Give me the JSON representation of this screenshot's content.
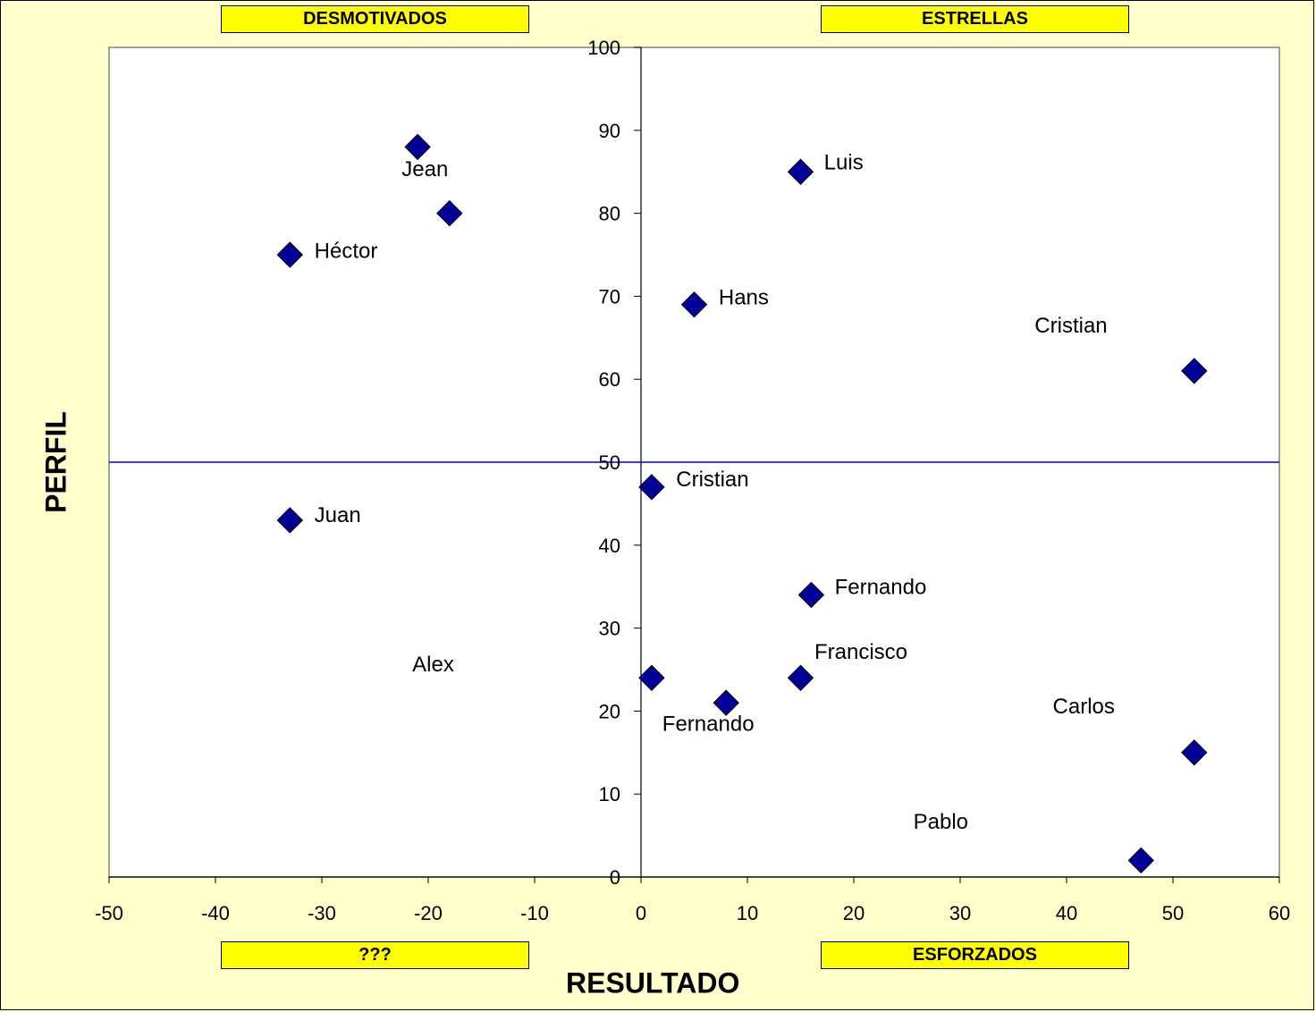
{
  "quadrants": {
    "top_left": "DESMOTIVADOS",
    "top_right": "ESTRELLAS",
    "bottom_left": "???",
    "bottom_right": "ESFORZADOS"
  },
  "colors": {
    "background": "#FFFFCC",
    "quadrant_fill": "#FFFF00",
    "marker": "#000099",
    "threshold_line": "#0000CC"
  },
  "chart_data": {
    "type": "scatter",
    "title": "",
    "xlabel": "RESULTADO",
    "ylabel": "PERFIL",
    "xlim": [
      -50,
      60
    ],
    "ylim": [
      0,
      100
    ],
    "x_ticks": [
      -50,
      -40,
      -30,
      -20,
      -10,
      0,
      10,
      20,
      30,
      40,
      50,
      60
    ],
    "y_ticks": [
      0,
      10,
      20,
      30,
      40,
      50,
      60,
      70,
      80,
      90,
      100
    ],
    "threshold_y": 50,
    "grid": false,
    "marker": "diamond",
    "points": [
      {
        "x": -21,
        "y": 88
      },
      {
        "x": -18,
        "y": 80
      },
      {
        "x": -33,
        "y": 75
      },
      {
        "x": -33,
        "y": 43
      },
      {
        "x": 15,
        "y": 85
      },
      {
        "x": 5,
        "y": 69
      },
      {
        "x": 52,
        "y": 61
      },
      {
        "x": 1,
        "y": 47
      },
      {
        "x": 16,
        "y": 34
      },
      {
        "x": 1,
        "y": 24
      },
      {
        "x": 15,
        "y": 24
      },
      {
        "x": 8,
        "y": 21
      },
      {
        "x": 52,
        "y": 15
      },
      {
        "x": 47,
        "y": 2
      }
    ],
    "labels": [
      {
        "text": "Jean",
        "x": -22.5,
        "y": 84.5
      },
      {
        "text": "Héctor",
        "x": -30.7,
        "y": 74.6
      },
      {
        "text": "Luis",
        "x": 17.2,
        "y": 85.3
      },
      {
        "text": "Hans",
        "x": 7.3,
        "y": 69.0
      },
      {
        "text": "Cristian",
        "x": 37.0,
        "y": 65.6
      },
      {
        "text": "Cristian",
        "x": 3.3,
        "y": 47.1
      },
      {
        "text": "Juan",
        "x": -30.7,
        "y": 42.8
      },
      {
        "text": "Fernando",
        "x": 18.2,
        "y": 34.1
      },
      {
        "text": "Alex",
        "x": -21.5,
        "y": 24.8
      },
      {
        "text": "Francisco",
        "x": 16.3,
        "y": 26.3
      },
      {
        "text": "Fernando",
        "x": 2.0,
        "y": 17.6
      },
      {
        "text": "Carlos",
        "x": 38.7,
        "y": 19.7
      },
      {
        "text": "Pablo",
        "x": 25.6,
        "y": 5.8
      }
    ]
  }
}
